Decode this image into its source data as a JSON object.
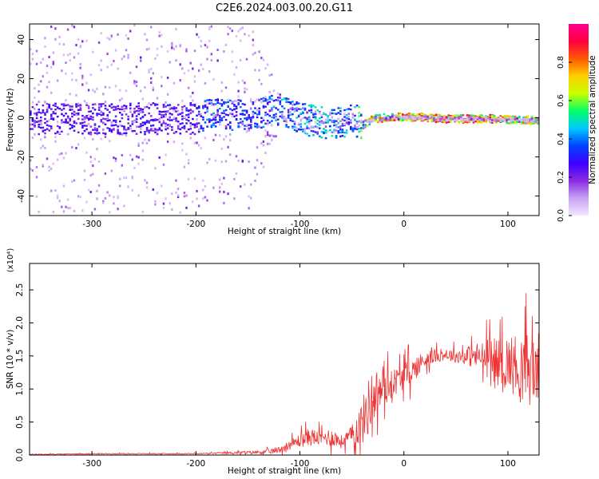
{
  "title": "C2E6.2024.003.00.20.G11",
  "chart_data": [
    {
      "type": "heatmap",
      "xlabel": "Height of straight line (km)",
      "ylabel": "Frequency (Hz)",
      "xlim": [
        -360,
        130
      ],
      "ylim": [
        -50,
        48
      ],
      "x_ticks": [
        "-300",
        "-200",
        "-100",
        "0",
        "100"
      ],
      "x_tick_values": [
        -300,
        -200,
        -100,
        0,
        100
      ],
      "y_ticks": [
        "40",
        "20",
        "0",
        "-20",
        "-40"
      ],
      "y_tick_values": [
        40,
        20,
        0,
        -20,
        -40
      ],
      "colorbar": {
        "label": "Normalized spectral amplitude",
        "range": [
          0,
          1
        ],
        "ticks": [
          "0.0",
          "0.2",
          "0.4",
          "0.6",
          "0.8"
        ],
        "tick_values": [
          0,
          0.2,
          0.4,
          0.6,
          0.8
        ],
        "colormap": [
          "#f3e6ff",
          "#c9a3f5",
          "#8a2be2",
          "#3d00ff",
          "#0044ff",
          "#00c8ff",
          "#00ff66",
          "#c8ff00",
          "#ffd000",
          "#ff5a00",
          "#ff0040",
          "#ff0090"
        ]
      },
      "band_profile": {
        "x": [
          -360,
          -300,
          -200,
          -190,
          -150,
          -120,
          -100,
          -70,
          -50,
          -40,
          -30,
          0,
          40,
          80,
          130
        ],
        "center_hz": [
          0,
          0,
          0,
          2,
          2,
          5,
          0,
          -3,
          0,
          -3,
          0,
          1,
          0,
          0,
          -1
        ],
        "core_amplitude": [
          0.28,
          0.28,
          0.3,
          0.4,
          0.35,
          0.45,
          0.45,
          0.5,
          0.45,
          0.6,
          0.8,
          0.85,
          0.9,
          0.88,
          0.7
        ],
        "scatter_extent_hz": [
          48,
          48,
          48,
          48,
          48,
          10,
          6,
          6,
          4,
          2,
          1,
          1,
          1,
          1,
          1
        ]
      },
      "grid": false
    },
    {
      "type": "line",
      "xlabel": "Height of straight line (km)",
      "ylabel": "SNR (10 * v/v)",
      "y_multiplier": "(x10⁴)",
      "xlim": [
        -360,
        130
      ],
      "ylim": [
        0,
        2.9
      ],
      "x_ticks": [
        "-300",
        "-200",
        "-100",
        "0",
        "100"
      ],
      "x_tick_values": [
        -300,
        -200,
        -100,
        0,
        100
      ],
      "y_ticks": [
        "0.0",
        "0.5",
        "1.0",
        "1.5",
        "2.0",
        "2.5"
      ],
      "y_tick_values": [
        0,
        0.5,
        1,
        1.5,
        2,
        2.5
      ],
      "color": "#ee3333",
      "series": [
        {
          "x": [
            -360,
            -300,
            -200,
            -150,
            -130,
            -120,
            -110,
            -100,
            -90,
            -80,
            -70,
            -60,
            -50,
            -40,
            -35,
            -30,
            -20,
            -10,
            0,
            10,
            20,
            30,
            40,
            50,
            60,
            70,
            80,
            90,
            100,
            110,
            120,
            130
          ],
          "values": [
            0.01,
            0.02,
            0.02,
            0.04,
            0.05,
            0.08,
            0.15,
            0.22,
            0.28,
            0.25,
            0.28,
            0.2,
            0.3,
            0.5,
            0.7,
            0.9,
            1.0,
            1.1,
            1.2,
            1.3,
            1.45,
            1.5,
            1.52,
            1.5,
            1.5,
            1.5,
            1.45,
            1.4,
            1.4,
            1.35,
            1.3,
            1.3
          ],
          "noise_amp": [
            0.01,
            0.01,
            0.01,
            0.03,
            0.05,
            0.08,
            0.1,
            0.15,
            0.2,
            0.15,
            0.2,
            0.15,
            0.2,
            0.5,
            0.6,
            0.6,
            0.4,
            0.3,
            0.3,
            0.25,
            0.2,
            0.15,
            0.12,
            0.15,
            0.2,
            0.3,
            0.4,
            0.5,
            0.6,
            0.7,
            0.8,
            0.8
          ]
        }
      ],
      "grid": false
    }
  ]
}
